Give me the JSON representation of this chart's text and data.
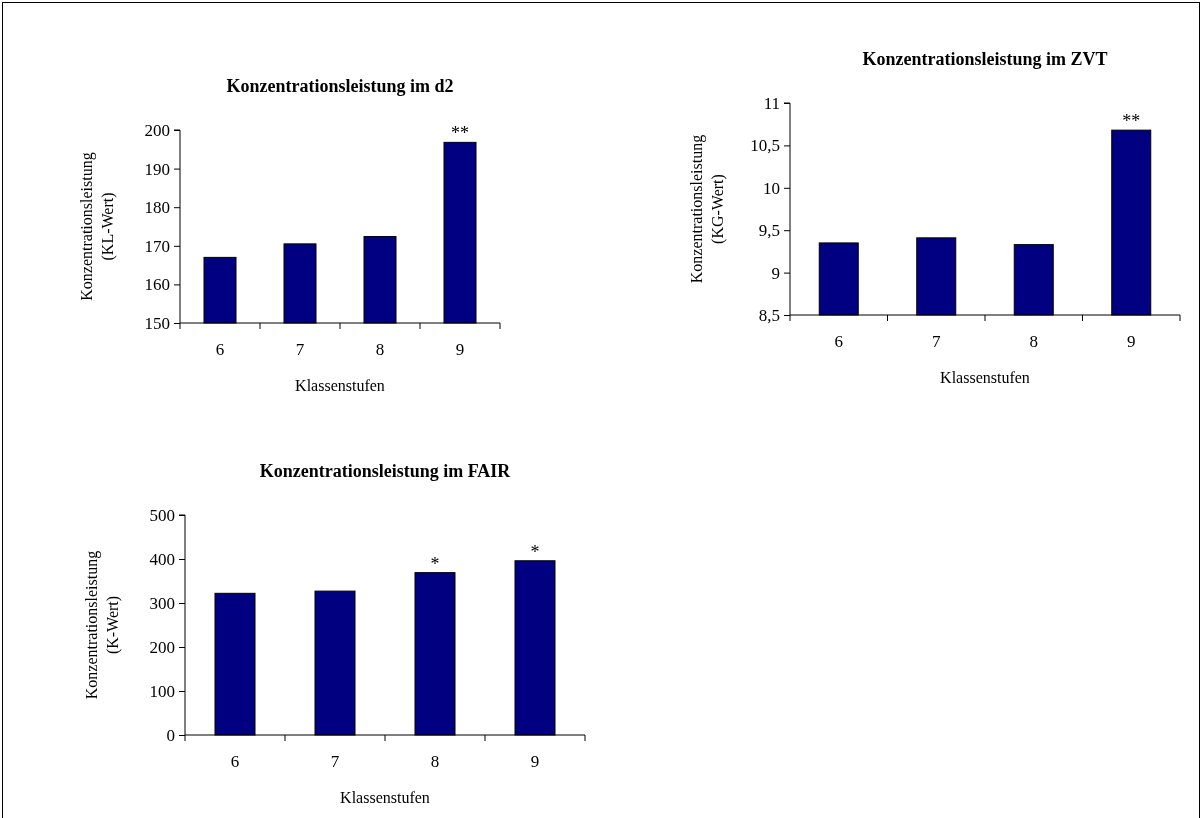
{
  "chart_data": [
    {
      "type": "bar",
      "title": "Konzentrationsleistung im d2",
      "xlabel": "Klassenstufen",
      "ylabel": "Konzentrationsleistung (KL-Wert)",
      "categories": [
        "6",
        "7",
        "8",
        "9"
      ],
      "values": [
        167,
        170.5,
        172.4,
        196.8
      ],
      "color": "#000080",
      "ylim": [
        150,
        200
      ],
      "yticks": [
        150,
        160,
        170,
        180,
        190,
        200
      ],
      "grid": false,
      "annotations": [
        {
          "text": "**",
          "x": "9",
          "y": 196.8
        }
      ]
    },
    {
      "type": "bar",
      "title": "Konzentrationsleistung im ZVT",
      "xlabel": "Klassenstufen",
      "ylabel": "Konzentrationsleistung (KG-Wert)",
      "categories": [
        "6",
        "7",
        "8",
        "9"
      ],
      "values": [
        9.35,
        9.41,
        9.33,
        10.68
      ],
      "color": "#000080",
      "ylim": [
        8.5,
        11
      ],
      "yticks": [
        {
          "value": 8.5,
          "label": "8,5"
        },
        9,
        {
          "value": 9.5,
          "label": "9,5"
        },
        10,
        {
          "value": 10.5,
          "label": "10,5"
        },
        11
      ],
      "grid": false,
      "annotations": [
        {
          "text": "**",
          "x": "9",
          "y": 10.68
        }
      ]
    },
    {
      "type": "bar",
      "title": "Konzentrationsleistung im FAIR",
      "xlabel": "Klassenstufen",
      "ylabel": "Konzentrationsleistung (K-Wert)",
      "categories": [
        "6",
        "7",
        "8",
        "9"
      ],
      "values": [
        322,
        327,
        369,
        396
      ],
      "color": "#000080",
      "ylim": [
        0,
        500
      ],
      "yticks": [
        0,
        100,
        200,
        300,
        400,
        500
      ],
      "grid": false,
      "annotations": [
        {
          "text": "*",
          "x": "8",
          "y": 369
        },
        {
          "text": "*",
          "x": "9",
          "y": 396
        }
      ]
    }
  ]
}
